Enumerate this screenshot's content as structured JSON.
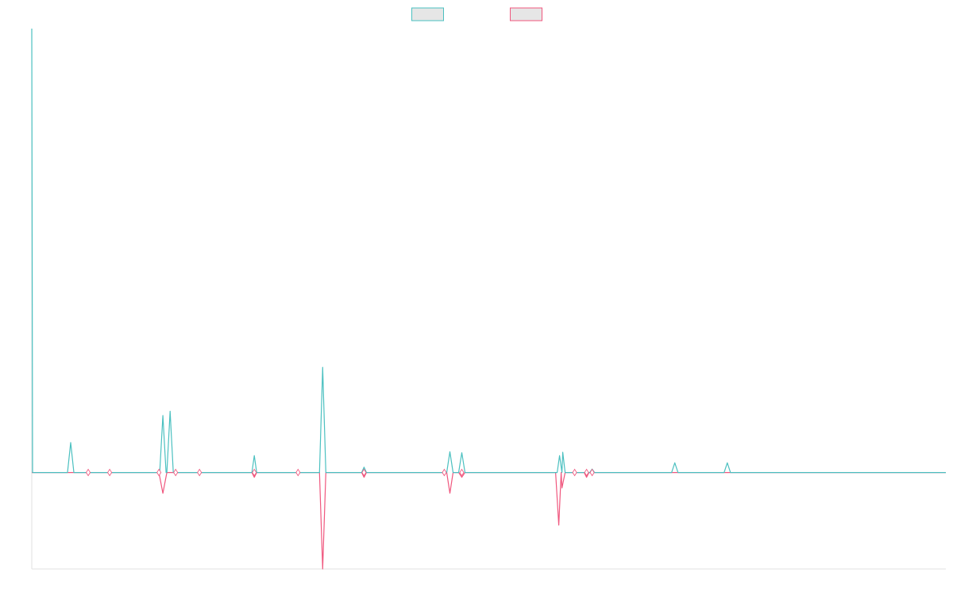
{
  "chart_data": {
    "type": "line",
    "title": "",
    "xlabel": "",
    "ylabel": "",
    "legend_position": "top-center",
    "grid": false,
    "x_range": [
      0,
      1150
    ],
    "ylim": [
      -20,
      92
    ],
    "baseline": 0,
    "colors": {
      "positive": "#4BC0C0",
      "negative": "#F0577E",
      "axis": "#e0e0e0"
    },
    "series": [
      {
        "name": "",
        "color": "#4BC0C0",
        "points": [
          [
            0,
            92
          ],
          [
            1,
            0
          ],
          [
            45,
            0
          ],
          [
            49,
            6.2
          ],
          [
            53,
            0
          ],
          [
            161,
            0
          ],
          [
            165,
            11.8
          ],
          [
            169,
            0
          ],
          [
            170,
            0
          ],
          [
            174,
            12.7
          ],
          [
            178,
            0
          ],
          [
            277,
            0
          ],
          [
            280,
            3.5
          ],
          [
            283,
            0
          ],
          [
            362,
            0
          ],
          [
            366,
            21.8
          ],
          [
            370,
            0
          ],
          [
            415,
            0
          ],
          [
            418,
            1.1
          ],
          [
            421,
            0
          ],
          [
            522,
            0
          ],
          [
            526,
            4.3
          ],
          [
            530,
            0
          ],
          [
            537,
            0
          ],
          [
            541,
            4.1
          ],
          [
            545,
            0
          ],
          [
            661,
            0
          ],
          [
            664,
            3.5
          ],
          [
            667,
            0
          ],
          [
            668,
            4.2
          ],
          [
            671,
            0
          ],
          [
            702,
            0
          ],
          [
            705,
            0.7
          ],
          [
            708,
            0
          ],
          [
            805,
            0
          ],
          [
            809,
            2.0
          ],
          [
            813,
            0
          ],
          [
            871,
            0
          ],
          [
            875,
            2.0
          ],
          [
            879,
            0
          ],
          [
            1150,
            0
          ]
        ]
      },
      {
        "name": "",
        "color": "#F0577E",
        "points": [
          [
            0,
            0
          ],
          [
            160,
            0
          ],
          [
            165,
            -4.3
          ],
          [
            170,
            0
          ],
          [
            277,
            0
          ],
          [
            280,
            -1.0
          ],
          [
            283,
            0
          ],
          [
            362,
            0
          ],
          [
            366,
            -20
          ],
          [
            370,
            0
          ],
          [
            415,
            0
          ],
          [
            418,
            -1.0
          ],
          [
            421,
            0
          ],
          [
            522,
            0
          ],
          [
            526,
            -4.3
          ],
          [
            530,
            0
          ],
          [
            537,
            0
          ],
          [
            541,
            -1.0
          ],
          [
            545,
            0
          ],
          [
            659,
            0
          ],
          [
            663,
            -10.9
          ],
          [
            666,
            0
          ],
          [
            667,
            -3.2
          ],
          [
            671,
            0
          ],
          [
            695,
            0
          ],
          [
            698,
            -1.0
          ],
          [
            701,
            0
          ],
          [
            1150,
            0
          ]
        ]
      }
    ],
    "markers": [
      {
        "x": 71,
        "y": 0
      },
      {
        "x": 98,
        "y": 0
      },
      {
        "x": 160,
        "y": 0
      },
      {
        "x": 181,
        "y": 0
      },
      {
        "x": 211,
        "y": 0
      },
      {
        "x": 280,
        "y": 0
      },
      {
        "x": 335,
        "y": 0
      },
      {
        "x": 418,
        "y": 0
      },
      {
        "x": 519,
        "y": 0
      },
      {
        "x": 541,
        "y": 0
      },
      {
        "x": 683,
        "y": 0
      },
      {
        "x": 698,
        "y": 0
      },
      {
        "x": 705,
        "y": 0
      }
    ]
  }
}
